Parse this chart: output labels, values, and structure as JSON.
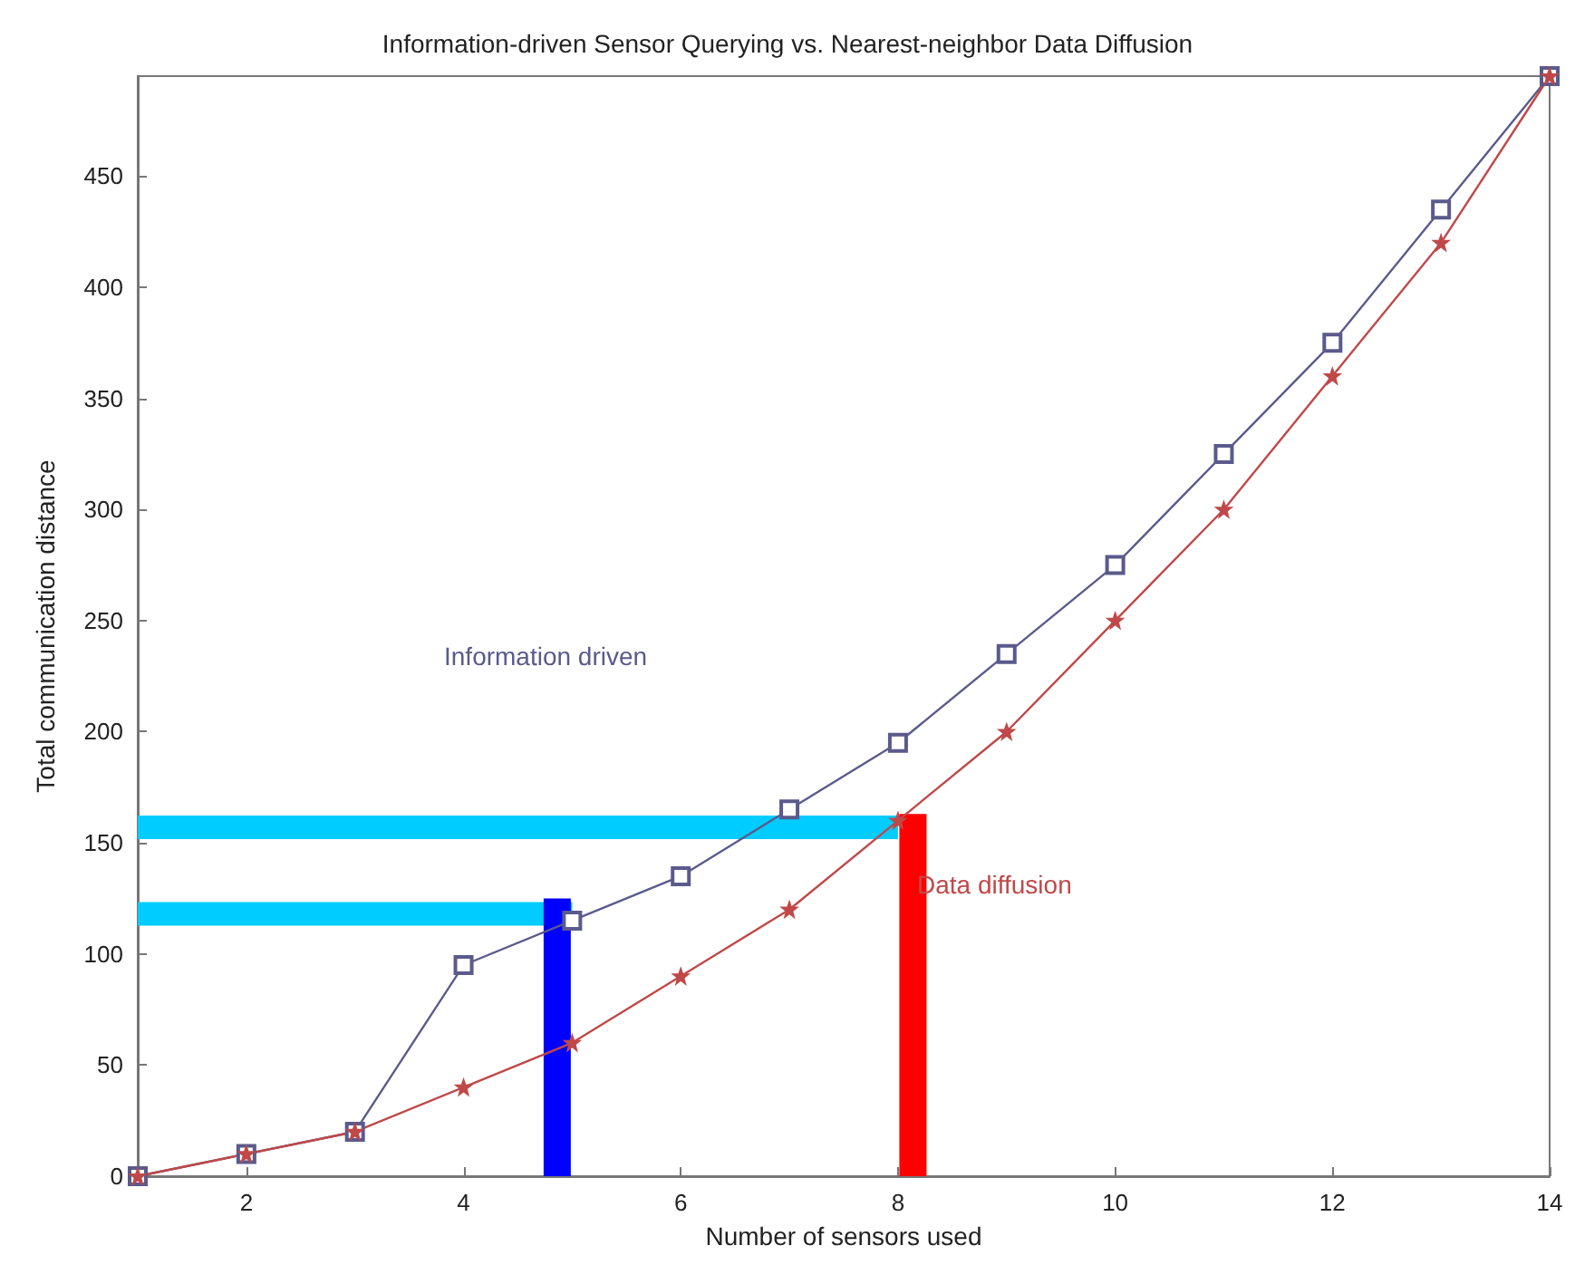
{
  "chart_data": {
    "type": "line",
    "title": "Information-driven Sensor Querying vs. Nearest-neighbor Data Diffusion",
    "xlabel": "Number of sensors used",
    "ylabel": "Total communication distance",
    "xlim": [
      1,
      14
    ],
    "xticks": [
      2,
      4,
      6,
      8,
      10,
      12,
      14
    ],
    "ylim": [
      0,
      495
    ],
    "yticks": [
      0,
      50,
      100,
      150,
      200,
      250,
      300,
      350,
      400,
      450
    ],
    "grid": false,
    "series": [
      {
        "name": "Information driven",
        "color": "#5a5a8c",
        "marker": "square",
        "x": [
          1,
          2,
          3,
          4,
          5,
          6,
          7,
          8,
          9,
          10,
          11,
          12,
          13,
          14
        ],
        "values": [
          0,
          10,
          20,
          95,
          115,
          135,
          165,
          195,
          235,
          275,
          325,
          375,
          435,
          495
        ]
      },
      {
        "name": "Data diffusion",
        "color": "#c04848",
        "marker": "star",
        "x": [
          1,
          2,
          3,
          4,
          5,
          6,
          7,
          8,
          9,
          10,
          11,
          12,
          13,
          14
        ],
        "values": [
          0,
          10,
          20,
          40,
          60,
          90,
          120,
          160,
          200,
          250,
          300,
          360,
          420,
          495
        ]
      },
      {
        "type": "bar",
        "color": "#0000ff",
        "x": [
          5
        ],
        "values": [
          125
        ]
      },
      {
        "type": "bar",
        "color": "#ff0000",
        "x": [
          8
        ],
        "values": [
          163
        ]
      },
      {
        "color": "#00ccff",
        "marker": "none",
        "x": [
          1,
          5
        ],
        "values": [
          118,
          118
        ]
      },
      {
        "color": "#00ccff",
        "marker": "none",
        "x": [
          1,
          8
        ],
        "values": [
          157,
          157
        ]
      }
    ]
  }
}
